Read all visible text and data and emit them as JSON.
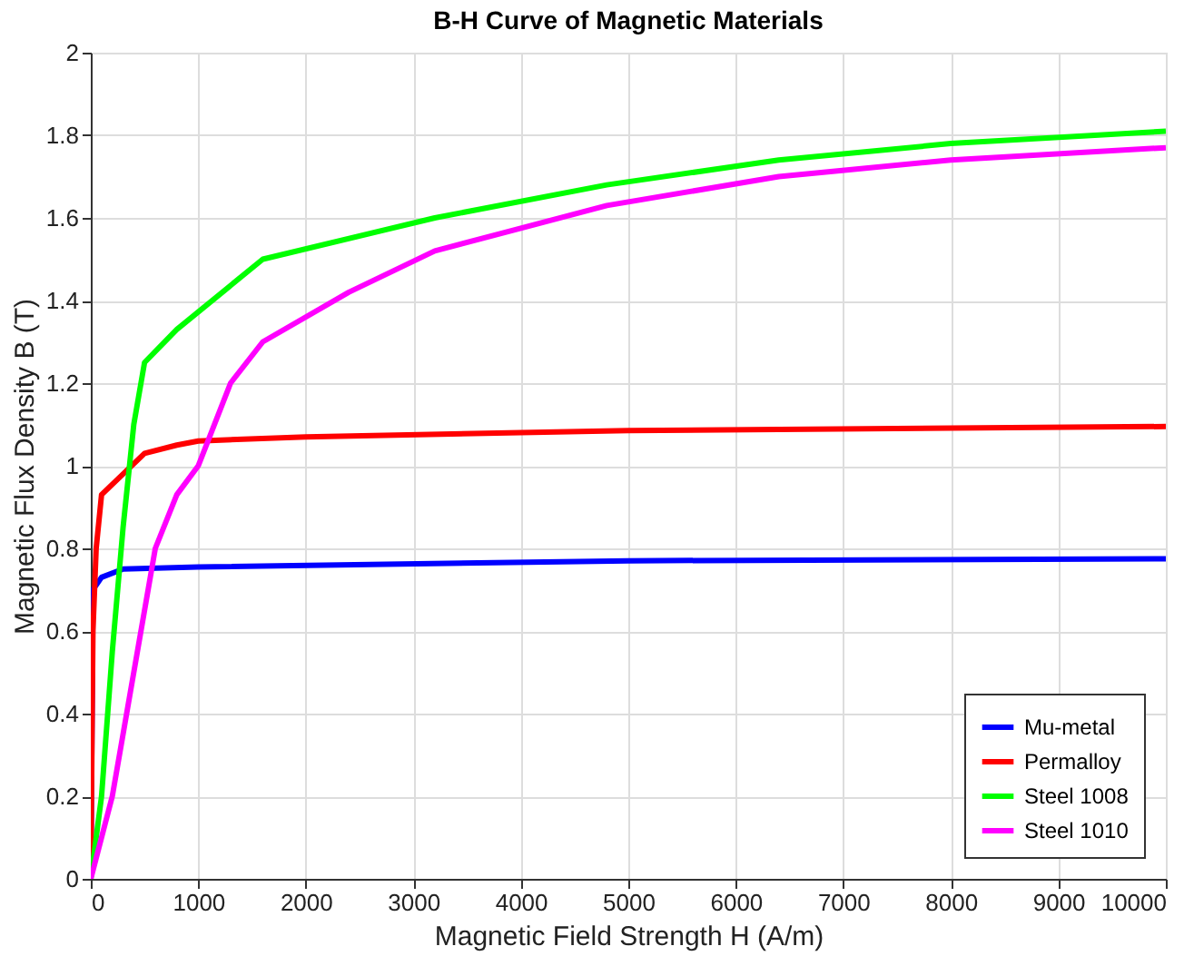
{
  "chart_data": {
    "type": "line",
    "title": "B-H Curve of Magnetic Materials",
    "xlabel": "Magnetic Field Strength H (A/m)",
    "ylabel": "Magnetic Flux Density B (T)",
    "xlim": [
      0,
      10000
    ],
    "xticks": [
      0,
      1000,
      2000,
      3000,
      4000,
      5000,
      6000,
      7000,
      8000,
      9000,
      10000
    ],
    "ylim": [
      0,
      2
    ],
    "yticks": [
      0,
      0.2,
      0.4,
      0.6,
      0.8,
      1,
      1.2,
      1.4,
      1.6,
      1.8,
      2
    ],
    "grid": true,
    "legend": "bottom right",
    "line_style": "solid",
    "marker": "none",
    "series": [
      {
        "name": "Mu-metal",
        "color": "#0000ff",
        "x": [
          0,
          20,
          100,
          300,
          1000,
          5000,
          10000
        ],
        "values": [
          0,
          0.7,
          0.73,
          0.75,
          0.755,
          0.77,
          0.775
        ]
      },
      {
        "name": "Permalloy",
        "color": "#ff0000",
        "x": [
          0,
          20,
          50,
          100,
          300,
          500,
          800,
          1000,
          2000,
          5000,
          10000
        ],
        "values": [
          0,
          0.6,
          0.8,
          0.93,
          0.98,
          1.03,
          1.05,
          1.06,
          1.07,
          1.085,
          1.095
        ]
      },
      {
        "name": "Steel 1008",
        "color": "#00ff00",
        "x": [
          0,
          100,
          200,
          300,
          400,
          500,
          800,
          1600,
          3200,
          4800,
          6400,
          8000,
          10000
        ],
        "values": [
          0,
          0.2,
          0.55,
          0.85,
          1.1,
          1.25,
          1.33,
          1.5,
          1.6,
          1.68,
          1.74,
          1.78,
          1.81
        ]
      },
      {
        "name": "Steel 1010",
        "color": "#ff00ff",
        "x": [
          0,
          200,
          400,
          600,
          800,
          1000,
          1300,
          1600,
          2400,
          3200,
          4800,
          6400,
          8000,
          10000
        ],
        "values": [
          0,
          0.2,
          0.5,
          0.8,
          0.93,
          1.0,
          1.2,
          1.3,
          1.42,
          1.52,
          1.63,
          1.7,
          1.74,
          1.77
        ]
      }
    ]
  }
}
